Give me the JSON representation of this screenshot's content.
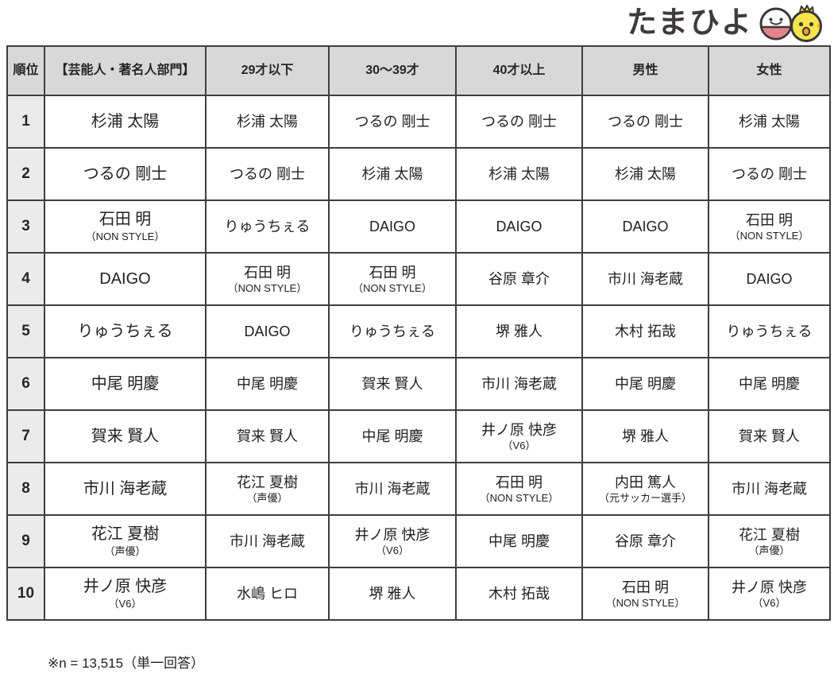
{
  "logo": {
    "text": "たまひよ"
  },
  "colors": {
    "header_bg": "#d8d8d8",
    "rank_bg": "#ebebeb",
    "border": "#3e3e3e",
    "logo_text": "#3f3b3a",
    "logo_face_pink": "#e2838e",
    "logo_chick_yellow": "#f6e44d",
    "logo_beak_orange": "#ef9f33"
  },
  "chart_data": {
    "type": "table",
    "title": "",
    "columns": [
      "順位",
      "【芸能人・著名人部門】",
      "29才以下",
      "30〜39才",
      "40才以上",
      "男性",
      "女性"
    ],
    "rows": [
      {
        "rank": "1",
        "cells": [
          {
            "name": "杉浦 太陽",
            "note": ""
          },
          {
            "name": "杉浦 太陽",
            "note": ""
          },
          {
            "name": "つるの 剛士",
            "note": ""
          },
          {
            "name": "つるの 剛士",
            "note": ""
          },
          {
            "name": "つるの 剛士",
            "note": ""
          },
          {
            "name": "杉浦 太陽",
            "note": ""
          }
        ]
      },
      {
        "rank": "2",
        "cells": [
          {
            "name": "つるの 剛士",
            "note": ""
          },
          {
            "name": "つるの 剛士",
            "note": ""
          },
          {
            "name": "杉浦 太陽",
            "note": ""
          },
          {
            "name": "杉浦 太陽",
            "note": ""
          },
          {
            "name": "杉浦 太陽",
            "note": ""
          },
          {
            "name": "つるの 剛士",
            "note": ""
          }
        ]
      },
      {
        "rank": "3",
        "cells": [
          {
            "name": "石田 明",
            "note": "（NON STYLE）"
          },
          {
            "name": "りゅうちぇる",
            "note": ""
          },
          {
            "name": "DAIGO",
            "note": ""
          },
          {
            "name": "DAIGO",
            "note": ""
          },
          {
            "name": "DAIGO",
            "note": ""
          },
          {
            "name": "石田 明",
            "note": "（NON STYLE）"
          }
        ]
      },
      {
        "rank": "4",
        "cells": [
          {
            "name": "DAIGO",
            "note": ""
          },
          {
            "name": "石田 明",
            "note": "（NON STYLE）"
          },
          {
            "name": "石田 明",
            "note": "（NON STYLE）"
          },
          {
            "name": "谷原 章介",
            "note": ""
          },
          {
            "name": "市川 海老蔵",
            "note": ""
          },
          {
            "name": "DAIGO",
            "note": ""
          }
        ]
      },
      {
        "rank": "5",
        "cells": [
          {
            "name": "りゅうちぇる",
            "note": ""
          },
          {
            "name": "DAIGO",
            "note": ""
          },
          {
            "name": "りゅうちぇる",
            "note": ""
          },
          {
            "name": "堺 雅人",
            "note": ""
          },
          {
            "name": "木村 拓哉",
            "note": ""
          },
          {
            "name": "りゅうちぇる",
            "note": ""
          }
        ]
      },
      {
        "rank": "6",
        "cells": [
          {
            "name": "中尾 明慶",
            "note": ""
          },
          {
            "name": "中尾 明慶",
            "note": ""
          },
          {
            "name": "賀来 賢人",
            "note": ""
          },
          {
            "name": "市川 海老蔵",
            "note": ""
          },
          {
            "name": "中尾 明慶",
            "note": ""
          },
          {
            "name": "中尾 明慶",
            "note": ""
          }
        ]
      },
      {
        "rank": "7",
        "cells": [
          {
            "name": "賀来 賢人",
            "note": ""
          },
          {
            "name": "賀来 賢人",
            "note": ""
          },
          {
            "name": "中尾 明慶",
            "note": ""
          },
          {
            "name": "井ノ原 快彦",
            "note": "（V6）"
          },
          {
            "name": "堺 雅人",
            "note": ""
          },
          {
            "name": "賀来 賢人",
            "note": ""
          }
        ]
      },
      {
        "rank": "8",
        "cells": [
          {
            "name": "市川 海老蔵",
            "note": ""
          },
          {
            "name": "花江 夏樹",
            "note": "（声優）"
          },
          {
            "name": "市川 海老蔵",
            "note": ""
          },
          {
            "name": "石田 明",
            "note": "（NON STYLE）"
          },
          {
            "name": "内田 篤人",
            "note": "（元サッカー選手）"
          },
          {
            "name": "市川 海老蔵",
            "note": ""
          }
        ]
      },
      {
        "rank": "9",
        "cells": [
          {
            "name": "花江 夏樹",
            "note": "（声優）"
          },
          {
            "name": "市川 海老蔵",
            "note": ""
          },
          {
            "name": "井ノ原 快彦",
            "note": "（V6）"
          },
          {
            "name": "中尾 明慶",
            "note": ""
          },
          {
            "name": "谷原 章介",
            "note": ""
          },
          {
            "name": "花江 夏樹",
            "note": "（声優）"
          }
        ]
      },
      {
        "rank": "10",
        "cells": [
          {
            "name": "井ノ原 快彦",
            "note": "（V6）"
          },
          {
            "name": "水嶋 ヒロ",
            "note": ""
          },
          {
            "name": "堺 雅人",
            "note": ""
          },
          {
            "name": "木村 拓哉",
            "note": ""
          },
          {
            "name": "石田 明",
            "note": "（NON STYLE）"
          },
          {
            "name": "井ノ原 快彦",
            "note": "（V6）"
          }
        ]
      }
    ],
    "footnote": "※n = 13,515（単一回答）"
  }
}
